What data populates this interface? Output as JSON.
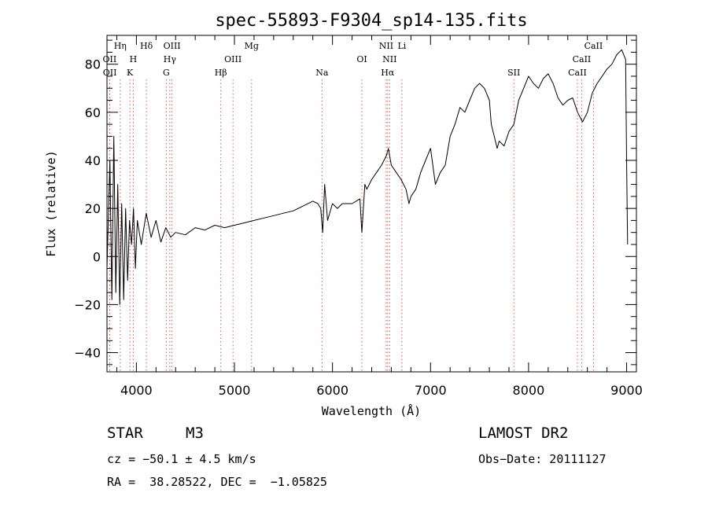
{
  "chart_data": {
    "type": "line",
    "title": "spec-55893-F9304_sp14-135.fits",
    "xlabel": "Wavelength (Å)",
    "ylabel": "Flux (relative)",
    "xlim": [
      3700,
      9100
    ],
    "ylim": [
      -48,
      92
    ],
    "x_ticks": [
      4000,
      5000,
      6000,
      7000,
      8000,
      9000
    ],
    "y_ticks": [
      -40,
      -20,
      0,
      20,
      40,
      60,
      80
    ],
    "grid": false,
    "series": [
      {
        "color": "#000000",
        "x": [
          3700,
          3730,
          3750,
          3770,
          3790,
          3810,
          3830,
          3850,
          3870,
          3890,
          3910,
          3930,
          3950,
          3970,
          3990,
          4010,
          4050,
          4100,
          4150,
          4200,
          4250,
          4300,
          4350,
          4400,
          4500,
          4600,
          4700,
          4800,
          4900,
          5000,
          5100,
          5200,
          5300,
          5400,
          5500,
          5600,
          5700,
          5800,
          5850,
          5880,
          5900,
          5920,
          5950,
          6000,
          6050,
          6100,
          6200,
          6280,
          6300,
          6330,
          6350,
          6400,
          6450,
          6500,
          6550,
          6570,
          6600,
          6650,
          6700,
          6750,
          6780,
          6800,
          6850,
          6900,
          6950,
          7000,
          7050,
          7100,
          7150,
          7200,
          7250,
          7300,
          7350,
          7400,
          7450,
          7500,
          7550,
          7600,
          7620,
          7650,
          7680,
          7700,
          7750,
          7800,
          7850,
          7900,
          7950,
          8000,
          8050,
          8100,
          8150,
          8200,
          8250,
          8300,
          8350,
          8400,
          8450,
          8500,
          8550,
          8600,
          8650,
          8700,
          8750,
          8800,
          8850,
          8900,
          8950,
          8990,
          9000,
          9010
        ],
        "values": [
          -5,
          40,
          -18,
          50,
          -15,
          30,
          -20,
          22,
          -18,
          20,
          -10,
          15,
          5,
          20,
          -5,
          15,
          5,
          18,
          8,
          15,
          6,
          12,
          8,
          10,
          9,
          12,
          11,
          13,
          12,
          13,
          14,
          15,
          16,
          17,
          18,
          19,
          21,
          23,
          22,
          20,
          10,
          30,
          15,
          22,
          20,
          22,
          22,
          24,
          10,
          30,
          28,
          32,
          35,
          38,
          42,
          45,
          38,
          35,
          32,
          28,
          22,
          25,
          28,
          35,
          40,
          45,
          30,
          35,
          38,
          50,
          55,
          62,
          60,
          65,
          70,
          72,
          70,
          65,
          55,
          50,
          45,
          48,
          46,
          52,
          55,
          65,
          70,
          75,
          72,
          70,
          74,
          76,
          72,
          66,
          63,
          65,
          66,
          60,
          56,
          60,
          68,
          72,
          75,
          78,
          80,
          84,
          86,
          82,
          40,
          5
        ]
      }
    ],
    "line_markers": [
      {
        "label": "Hη",
        "x": 3835,
        "row": 0
      },
      {
        "label": "OII",
        "x": 3727,
        "row": 1
      },
      {
        "label": "OII",
        "x": 3729,
        "row": 2
      },
      {
        "label": "H",
        "x": 3968,
        "row": 1
      },
      {
        "label": "K",
        "x": 3934,
        "row": 2
      },
      {
        "label": "Hδ",
        "x": 4102,
        "row": 0
      },
      {
        "label": "OIII",
        "x": 4363,
        "row": 0
      },
      {
        "label": "Hγ",
        "x": 4341,
        "row": 1
      },
      {
        "label": "G",
        "x": 4305,
        "row": 2
      },
      {
        "label": "Mg",
        "x": 5175,
        "row": 0
      },
      {
        "label": "OIII",
        "x": 4985,
        "row": 1
      },
      {
        "label": "Hβ",
        "x": 4861,
        "row": 2
      },
      {
        "label": "Na",
        "x": 5893,
        "row": 2
      },
      {
        "label": "OI",
        "x": 6300,
        "row": 1
      },
      {
        "label": "NII",
        "x": 6548,
        "row": 0
      },
      {
        "label": "Li",
        "x": 6708,
        "row": 0
      },
      {
        "label": "NII",
        "x": 6583,
        "row": 1
      },
      {
        "label": "Hα",
        "x": 6563,
        "row": 2
      },
      {
        "label": "SII",
        "x": 7850,
        "row": 2
      },
      {
        "label": "CaII",
        "x": 8662,
        "row": 0
      },
      {
        "label": "CaII",
        "x": 8542,
        "row": 1
      },
      {
        "label": "CaII",
        "x": 8498,
        "row": 2
      }
    ]
  },
  "footer": {
    "object_class": "STAR",
    "subclass": "M3",
    "survey": "LAMOST DR2",
    "redshift": "cz = −50.1 ± 4.5 km/s",
    "obs_date": "Obs−Date: 20111127",
    "coords": "RA =  38.28522, DEC =  −1.05825"
  }
}
